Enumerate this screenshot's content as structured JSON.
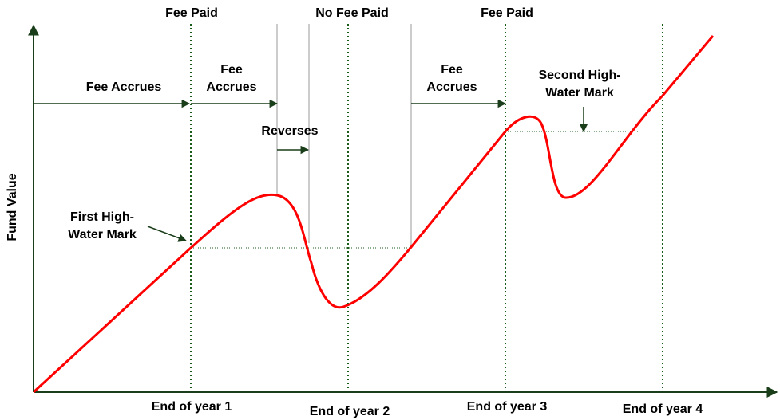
{
  "diagram": {
    "y_axis_label": "Fund Value",
    "x_labels": [
      "End of year 1",
      "End of year 2",
      "End of year 3",
      "End of year 4"
    ],
    "top_labels": [
      "Fee Paid",
      "No Fee Paid",
      "Fee Paid"
    ],
    "annotations": [
      {
        "lines": [
          "Fee Accrues"
        ]
      },
      {
        "lines": [
          "Fee",
          "Accrues"
        ]
      },
      {
        "lines": [
          "Reverses"
        ]
      },
      {
        "lines": [
          "Fee",
          "Accrues"
        ]
      },
      {
        "lines": [
          "First High-",
          "Water Mark"
        ]
      },
      {
        "lines": [
          "Second High-",
          "Water Mark"
        ]
      }
    ]
  }
}
